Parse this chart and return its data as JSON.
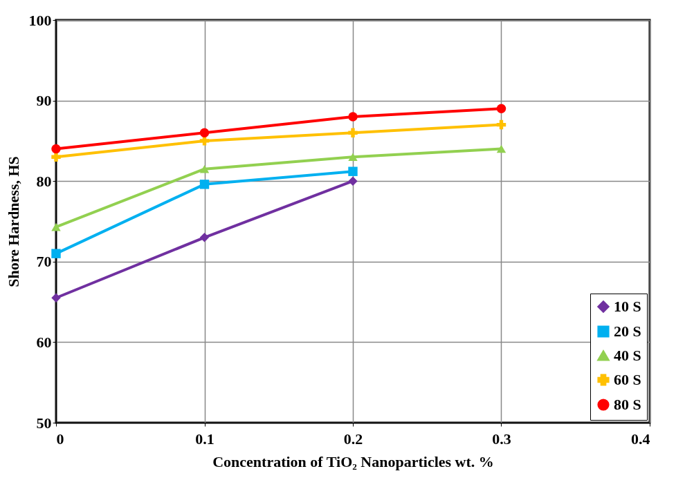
{
  "chart_data": {
    "type": "line",
    "xlabel": "Concentration of TiO₂ Nanoparticles wt. %",
    "ylabel": "Shore Hardness, HS",
    "xlim": [
      0,
      0.4
    ],
    "xticks": [
      0,
      0.1,
      0.2,
      0.3,
      0.4
    ],
    "ylim": [
      50,
      100
    ],
    "yticks": [
      50,
      60,
      70,
      80,
      90,
      100
    ],
    "grid": true,
    "legend": "bottom right",
    "line_style": "solid",
    "series": [
      {
        "name": "10 S",
        "color": "#7030a0",
        "marker": "diamond",
        "x": [
          0,
          0.1,
          0.2
        ],
        "values": [
          65.5,
          73,
          80
        ]
      },
      {
        "name": "20 S",
        "color": "#00b0f0",
        "marker": "square",
        "x": [
          0,
          0.1,
          0.2
        ],
        "values": [
          71,
          79.6,
          81.2
        ]
      },
      {
        "name": "40 S",
        "color": "#92d050",
        "marker": "triangle",
        "x": [
          0,
          0.1,
          0.2,
          0.3
        ],
        "values": [
          74.3,
          81.5,
          83,
          84
        ]
      },
      {
        "name": "60 S",
        "color": "#ffc000",
        "marker": "cross",
        "x": [
          0,
          0.1,
          0.2,
          0.3
        ],
        "values": [
          83,
          85,
          86,
          87
        ]
      },
      {
        "name": "80 S",
        "color": "#ff0000",
        "marker": "circle",
        "x": [
          0,
          0.1,
          0.2,
          0.3
        ],
        "values": [
          84,
          86,
          88,
          89
        ]
      }
    ]
  }
}
